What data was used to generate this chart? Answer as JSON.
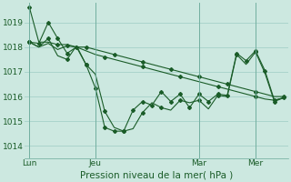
{
  "bg_color": "#cce8e0",
  "grid_color": "#aad4cc",
  "line_color": "#1a5c28",
  "xlabel": "Pression niveau de la mer( hPa )",
  "xlabel_fontsize": 7.5,
  "ylim": [
    1013.5,
    1019.8
  ],
  "yticks": [
    1014,
    1015,
    1016,
    1017,
    1018,
    1019
  ],
  "xtick_labels": [
    "Lun",
    "Jeu",
    "Mar",
    "Mer"
  ],
  "xtick_positions": [
    0,
    7,
    18,
    24
  ],
  "vline_x": [
    0,
    7,
    18,
    24
  ],
  "n_points": 28,
  "series1_x": [
    0,
    1,
    2,
    3,
    4,
    5,
    6,
    7,
    8,
    9,
    10,
    11,
    12,
    13,
    14,
    15,
    16,
    17,
    18,
    19,
    20,
    21,
    22,
    23,
    24,
    25,
    26,
    27
  ],
  "series1_y": [
    1019.6,
    1018.2,
    1018.2,
    1018.1,
    1018.1,
    1018.0,
    1018.0,
    1017.9,
    1017.8,
    1017.7,
    1017.6,
    1017.5,
    1017.4,
    1017.3,
    1017.2,
    1017.1,
    1017.0,
    1016.9,
    1016.8,
    1016.7,
    1016.6,
    1016.5,
    1016.4,
    1016.3,
    1016.2,
    1016.1,
    1016.0,
    1016.0
  ],
  "series2_x": [
    0,
    1,
    2,
    3,
    4,
    5,
    6,
    7,
    8,
    9,
    10,
    11,
    12,
    13,
    14,
    15,
    16,
    17,
    18,
    19,
    20,
    21,
    22,
    23,
    24,
    25,
    26,
    27
  ],
  "series2_y": [
    1018.2,
    1018.15,
    1019.0,
    1018.35,
    1017.75,
    1018.0,
    1017.3,
    1016.35,
    1014.75,
    1014.6,
    1014.6,
    1015.45,
    1015.8,
    1015.65,
    1016.2,
    1015.8,
    1016.1,
    1015.55,
    1016.1,
    1015.8,
    1016.1,
    1016.05,
    1017.75,
    1017.45,
    1017.85,
    1017.05,
    1015.85,
    1015.95
  ],
  "series3_x": [
    0,
    1,
    2,
    3,
    4,
    5,
    6,
    7,
    8,
    9,
    10,
    11,
    12,
    13,
    14,
    15,
    16,
    17,
    18,
    19,
    20,
    21,
    22,
    23,
    24,
    25,
    26,
    27
  ],
  "series3_y": [
    1018.2,
    1018.0,
    1018.35,
    1017.65,
    1017.5,
    1018.05,
    1017.3,
    1016.9,
    1015.4,
    1014.75,
    1014.6,
    1014.7,
    1015.35,
    1015.75,
    1015.55,
    1015.45,
    1015.85,
    1015.75,
    1015.85,
    1015.5,
    1016.05,
    1016.0,
    1017.7,
    1017.3,
    1017.8,
    1016.95,
    1015.8,
    1015.95
  ],
  "series4_x": [
    0,
    1,
    2,
    3,
    4,
    5,
    6,
    7,
    8,
    9,
    10,
    11,
    12,
    13,
    14,
    15,
    16,
    17,
    18,
    19,
    20,
    21,
    22,
    23,
    24,
    25,
    26,
    27
  ],
  "series4_y": [
    1018.2,
    1018.0,
    1018.15,
    1017.9,
    1018.05,
    1018.0,
    1017.85,
    1017.7,
    1017.6,
    1017.5,
    1017.4,
    1017.3,
    1017.2,
    1017.1,
    1017.0,
    1016.9,
    1016.8,
    1016.7,
    1016.6,
    1016.5,
    1016.4,
    1016.3,
    1016.2,
    1016.1,
    1016.0,
    1015.9,
    1015.85,
    1015.95
  ]
}
